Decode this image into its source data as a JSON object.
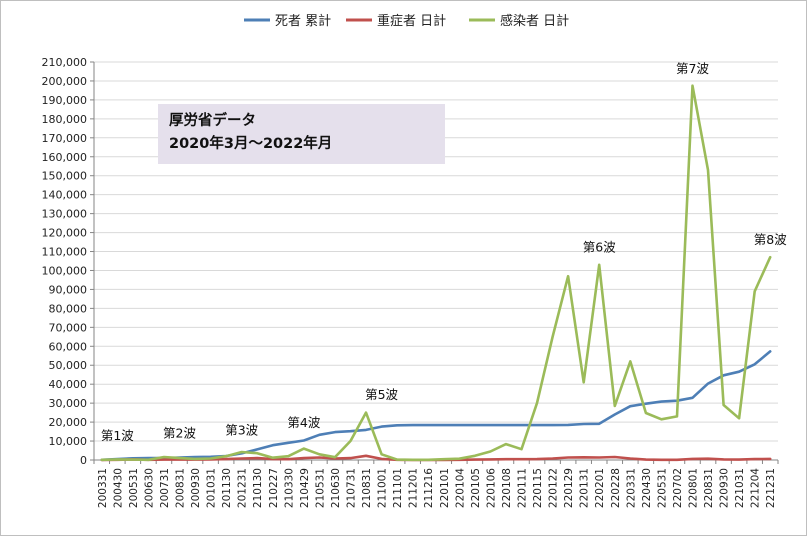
{
  "note_box": {
    "line1": "厚労省データ",
    "line2": "2020年3月～2022年月"
  },
  "colors": {
    "deaths": "#4e7fb6",
    "severe": "#c0504d",
    "infected": "#9bbb59",
    "grid": "#d9d9d9"
  },
  "chart_data": {
    "type": "line",
    "ylim": [
      0,
      210000
    ],
    "y_ticks": [
      "0",
      "10,000",
      "20,000",
      "30,000",
      "40,000",
      "50,000",
      "60,000",
      "70,000",
      "80,000",
      "90,000",
      "100,000",
      "110,000",
      "120,000",
      "130,000",
      "140,000",
      "150,000",
      "160,000",
      "170,000",
      "180,000",
      "190,000",
      "200,000",
      "210,000"
    ],
    "legend_position": "top",
    "grid": true,
    "x_labels": [
      "200331",
      "200430",
      "200531",
      "200630",
      "200731",
      "200831",
      "200930",
      "201031",
      "201130",
      "201231",
      "210130",
      "210227",
      "210330",
      "210429",
      "210531",
      "210630",
      "210731",
      "210831",
      "211001",
      "211101",
      "211201",
      "211216",
      "220101",
      "220104",
      "220105",
      "220106",
      "220108",
      "220111",
      "220115",
      "220122",
      "220129",
      "220131",
      "220201",
      "220228",
      "220331",
      "220430",
      "220531",
      "220702",
      "220801",
      "220831",
      "220930",
      "221031",
      "221204",
      "221231"
    ],
    "series": [
      {
        "name": "死者 累計",
        "color_key": "deaths",
        "values": [
          100,
          500,
          900,
          1000,
          1000,
          1300,
          1600,
          1700,
          2100,
          3500,
          5600,
          7800,
          9100,
          10300,
          13300,
          14700,
          15200,
          15900,
          17600,
          18300,
          18400,
          18400,
          18400,
          18400,
          18400,
          18400,
          18400,
          18400,
          18400,
          18400,
          18500,
          19000,
          19100,
          24000,
          28400,
          29700,
          30800,
          31300,
          32800,
          40300,
          44700,
          46600,
          50500,
          57300
        ]
      },
      {
        "name": "重症者 日計",
        "color_key": "severe",
        "values": [
          50,
          100,
          300,
          100,
          200,
          200,
          200,
          300,
          500,
          800,
          1000,
          500,
          400,
          1000,
          1300,
          800,
          1000,
          2200,
          600,
          100,
          50,
          50,
          50,
          100,
          200,
          300,
          400,
          400,
          500,
          800,
          1300,
          1400,
          1300,
          1600,
          800,
          200,
          100,
          100,
          600,
          700,
          300,
          200,
          500,
          600
        ]
      },
      {
        "name": "感染者 日計",
        "color_key": "infected",
        "values": [
          100,
          300,
          200,
          100,
          1600,
          1000,
          600,
          800,
          2000,
          4200,
          3600,
          1200,
          2000,
          6000,
          3000,
          1500,
          10000,
          25000,
          3000,
          200,
          100,
          100,
          400,
          700,
          2200,
          4500,
          8400,
          5700,
          30000,
          65000,
          97000,
          41000,
          103000,
          28500,
          52000,
          24800,
          21500,
          23000,
          197500,
          153000,
          29000,
          22000,
          89000,
          107000
        ]
      }
    ],
    "annotations": [
      {
        "label": "第1波",
        "x_index": 1,
        "y": 10500
      },
      {
        "label": "第2波",
        "x_index": 5,
        "y": 12000
      },
      {
        "label": "第3波",
        "x_index": 9,
        "y": 13500
      },
      {
        "label": "第4波",
        "x_index": 13,
        "y": 17300
      },
      {
        "label": "第5波",
        "x_index": 18,
        "y": 32300
      },
      {
        "label": "第6波",
        "x_index": 32,
        "y": 110000
      },
      {
        "label": "第7波",
        "x_index": 38,
        "y": 204200
      },
      {
        "label": "第8波",
        "x_index": 43,
        "y": 114000
      }
    ]
  }
}
